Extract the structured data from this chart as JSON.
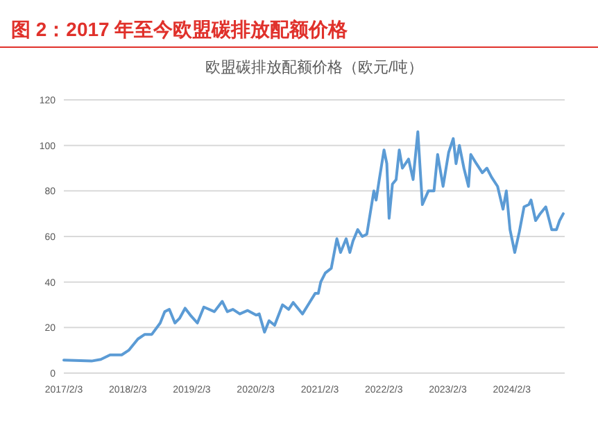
{
  "chart_data": {
    "type": "line",
    "title": "图 2：2017 年至今欧盟碳排放配额价格",
    "subtitle": "欧盟碳排放配额价格（欧元/吨）",
    "x": [
      "2017-02-03",
      "2017-07-11",
      "2017-09-02",
      "2017-10-25",
      "2017-12-30",
      "2018-02-08",
      "2018-04-02",
      "2018-05-11",
      "2018-06-20",
      "2018-08-07",
      "2018-09-02",
      "2018-09-28",
      "2018-10-30",
      "2018-11-25",
      "2018-12-27",
      "2019-01-31",
      "2019-03-07",
      "2019-04-13",
      "2019-06-12",
      "2019-07-27",
      "2019-08-25",
      "2019-09-26",
      "2019-11-04",
      "2019-12-19",
      "2020-02-05",
      "2020-02-23",
      "2020-03-24",
      "2020-04-19",
      "2020-05-21",
      "2020-07-05",
      "2020-08-09",
      "2020-09-04",
      "2020-10-27",
      "2020-12-06",
      "2021-01-07",
      "2021-01-25",
      "2021-02-08",
      "2021-03-06",
      "2021-04-09",
      "2021-05-11",
      "2021-06-01",
      "2021-07-03",
      "2021-07-24",
      "2021-08-11",
      "2021-09-07",
      "2021-10-03",
      "2021-10-29",
      "2021-12-08",
      "2021-12-21",
      "2022-01-08",
      "2022-02-04",
      "2022-02-20",
      "2022-03-05",
      "2022-03-24",
      "2022-04-14",
      "2022-05-02",
      "2022-05-20",
      "2022-06-24",
      "2022-07-20",
      "2022-08-16",
      "2022-09-11",
      "2022-10-15",
      "2022-11-16",
      "2022-12-07",
      "2023-01-07",
      "2023-02-08",
      "2023-03-06",
      "2023-03-22",
      "2023-04-10",
      "2023-05-06",
      "2023-06-01",
      "2023-06-14",
      "2023-07-16",
      "2023-08-19",
      "2023-09-14",
      "2023-10-11",
      "2023-11-14",
      "2023-12-15",
      "2024-01-03",
      "2024-01-24",
      "2024-02-20",
      "2024-03-17",
      "2024-04-13",
      "2024-05-10",
      "2024-05-23",
      "2024-06-18",
      "2024-07-14",
      "2024-08-15",
      "2024-09-18",
      "2024-10-15",
      "2024-11-02",
      "2024-11-23"
    ],
    "series": [
      {
        "color": "#5b9bd5",
        "values": [
          5.7,
          5.3,
          6,
          8,
          8,
          10,
          15,
          17,
          17,
          22,
          27,
          28,
          22,
          24,
          28.5,
          25,
          22,
          29,
          27,
          31.5,
          27,
          28,
          26,
          27.5,
          25.5,
          26,
          18,
          23,
          21,
          30,
          28,
          31,
          26,
          31,
          35,
          35,
          40,
          44,
          46,
          59,
          53,
          59,
          53,
          58,
          63,
          60,
          61,
          80,
          76,
          85,
          98,
          92,
          68,
          83,
          85,
          98,
          90,
          94,
          85,
          106,
          74,
          80,
          80,
          96,
          82,
          97,
          103,
          92,
          100,
          90,
          82,
          96,
          92,
          88,
          90,
          86,
          82,
          72,
          80,
          63,
          53,
          62,
          73,
          74,
          76,
          67,
          70,
          73,
          63,
          63,
          67,
          70
        ]
      }
    ],
    "xlim": [
      "2017-02-03",
      "2024-12-01"
    ],
    "xticks": [
      {
        "value": "2017-02-03",
        "label": "2017/2/3"
      },
      {
        "value": "2018-02-03",
        "label": "2018/2/3"
      },
      {
        "value": "2019-02-03",
        "label": "2019/2/3"
      },
      {
        "value": "2020-02-03",
        "label": "2020/2/3"
      },
      {
        "value": "2021-02-03",
        "label": "2021/2/3"
      },
      {
        "value": "2022-02-03",
        "label": "2022/2/3"
      },
      {
        "value": "2023-02-03",
        "label": "2023/2/3"
      },
      {
        "value": "2024-02-03",
        "label": "2024/2/3"
      }
    ],
    "ylim": [
      0,
      120
    ],
    "yticks": [
      0,
      20,
      40,
      60,
      80,
      100,
      120
    ],
    "grid": "y"
  }
}
